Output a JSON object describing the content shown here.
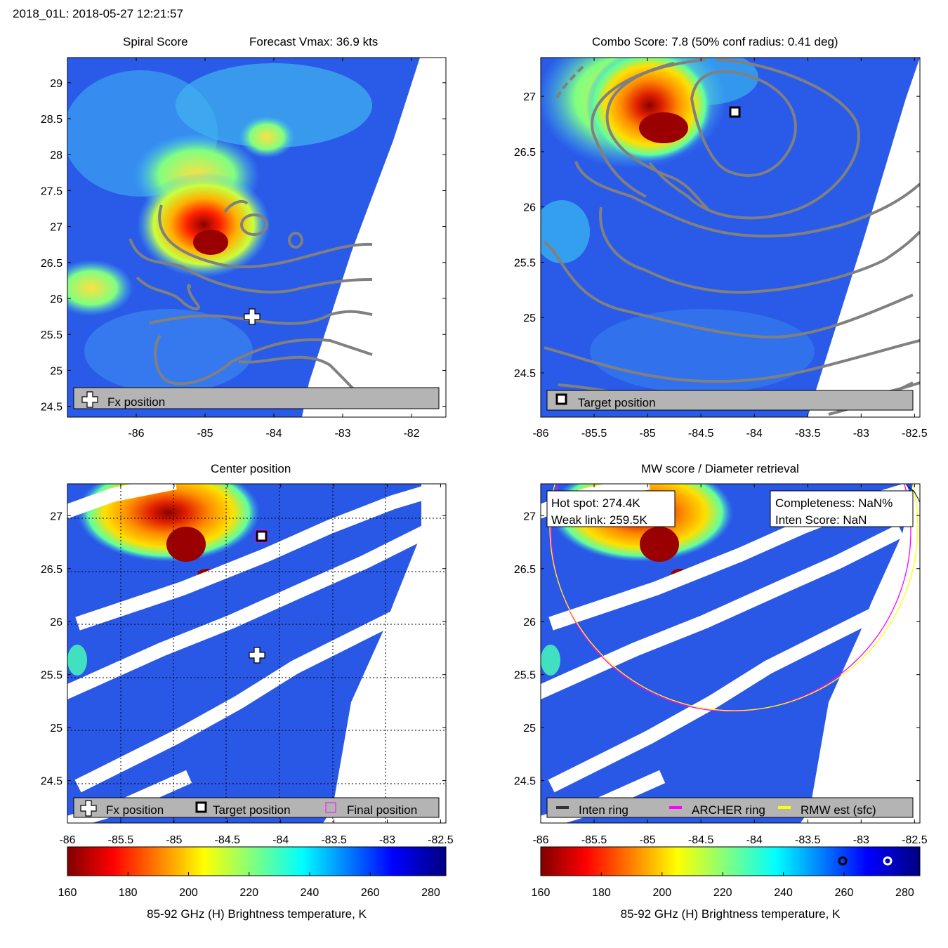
{
  "header": "2018_01L: 2018-05-27 12:21:57",
  "panels": {
    "tl": {
      "title_left": "Spiral Score",
      "title_right": "Forecast Vmax: 36.9 kts",
      "legend": [
        "Fx position"
      ]
    },
    "tr": {
      "title": "Combo Score: 7.8  (50% conf radius: 0.41 deg)",
      "legend": [
        "Target position"
      ]
    },
    "bl": {
      "title": "Center position",
      "legend": [
        "Fx position",
        "Target position",
        "Final position"
      ]
    },
    "br": {
      "title": "MW score / Diameter retrieval",
      "legend": [
        "Inten ring",
        "ARCHER ring",
        "RMW est (sfc)"
      ],
      "info_left": [
        "Hot spot: 274.4K",
        "Weak link: 259.5K"
      ],
      "info_right": [
        "Completeness: NaN%",
        "Inten Score: NaN"
      ]
    }
  },
  "colorbar": {
    "label": "85-92 GHz (H) Brightness temperature, K",
    "ticks": [
      "160",
      "180",
      "200",
      "220",
      "240",
      "260",
      "280"
    ],
    "range": [
      160,
      285
    ]
  },
  "colors": {
    "fx": "#ffffff",
    "target": "#000000",
    "final": "#ff00ff",
    "archer_ring": "#ff00ff",
    "rmw_ring": "#ffff00",
    "inten_ring": "#333333"
  },
  "chart_data": [
    {
      "type": "heatmap",
      "panel": "Spiral Score",
      "xlim": [
        -87,
        -81.5
      ],
      "ylim": [
        24.35,
        29.35
      ],
      "xticks": [
        "-86",
        "-85",
        "-84",
        "-83",
        "-82"
      ],
      "yticks": [
        "24.5",
        "25",
        "25.5",
        "26",
        "26.5",
        "27",
        "27.5",
        "28",
        "28.5",
        "29"
      ],
      "markers": [
        {
          "name": "Fx position",
          "lon": -84.2,
          "lat": 25.73
        }
      ]
    },
    {
      "type": "heatmap",
      "panel": "Combo Score",
      "xlim": [
        -86,
        -82.45
      ],
      "ylim": [
        24.1,
        27.35
      ],
      "xticks": [
        "-86",
        "-85.5",
        "-85",
        "-84.5",
        "-84",
        "-83.5",
        "-83",
        "-82.5"
      ],
      "yticks": [
        "24.5",
        "25",
        "25.5",
        "26",
        "26.5",
        "27"
      ],
      "markers": [
        {
          "name": "Target position",
          "lon": -84.17,
          "lat": 26.83
        }
      ]
    },
    {
      "type": "heatmap",
      "panel": "Center position",
      "xlim": [
        -86,
        -82.45
      ],
      "ylim": [
        24.1,
        27.3
      ],
      "xticks": [
        "-86",
        "-85.5",
        "-85",
        "-84.5",
        "-84",
        "-83.5",
        "-83",
        "-82.5"
      ],
      "yticks": [
        "24.5",
        "25",
        "25.5",
        "26",
        "26.5",
        "27"
      ],
      "markers": [
        {
          "name": "Fx position",
          "lon": -84.2,
          "lat": 25.73
        },
        {
          "name": "Target position",
          "lon": -84.17,
          "lat": 26.83
        },
        {
          "name": "Final position",
          "lon": -84.17,
          "lat": 26.83
        }
      ]
    },
    {
      "type": "heatmap",
      "panel": "MW score / Diameter retrieval",
      "xlim": [
        -86,
        -82.45
      ],
      "ylim": [
        24.1,
        27.3
      ],
      "xticks": [
        "-86",
        "-85.5",
        "-85",
        "-84.5",
        "-84",
        "-83.5",
        "-83",
        "-82.5"
      ],
      "yticks": [
        "24.5",
        "25",
        "25.5",
        "26",
        "26.5",
        "27"
      ],
      "rings": [
        {
          "name": "ARCHER ring",
          "center": [
            -84.17,
            26.83
          ],
          "radius_deg": 1.7
        },
        {
          "name": "RMW est (sfc)",
          "center": [
            -84.17,
            26.83
          ],
          "radius_deg": 1.75
        }
      ]
    }
  ]
}
